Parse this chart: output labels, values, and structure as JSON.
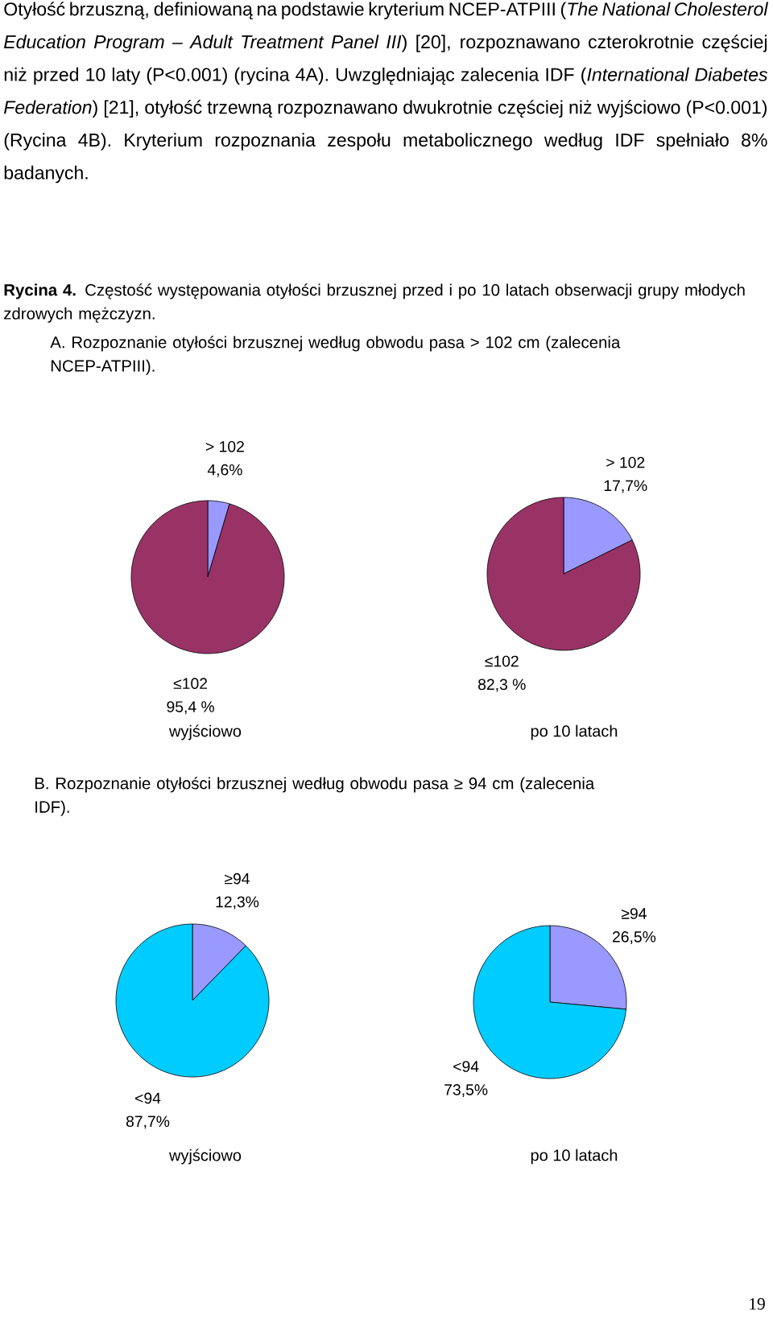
{
  "chart_data": [
    {
      "type": "pie",
      "title": "wyjściowo",
      "categories": [
        "> 102",
        "≤102"
      ],
      "values": [
        4.6,
        95.4
      ],
      "colors": [
        "#9999ff",
        "#993366"
      ],
      "value_labels": [
        "4,6%",
        "95,4 %"
      ],
      "annotations": [
        "Otyłość brzuszną, definiowaną na podstawie kryterium NCEP-ATPIII (*The National Cholesterol Education Program – Adult Treatment Panel III*) [20], rozpoznawano czterokrotnie częściej niż przed 10 laty (P<0.001) (rycina 4A). Uwzględniając zalecenia IDF (*International Diabetes Federation*) [21], otyłość trzewną rozpoznawano dwukrotnie częściej niż wyjściowo (P<0.001) (Rycina 4B). Kryterium rozpoznania zespołu metabolicznego według IDF spełniało 8% badanych.",
        "**Rycina 4.** Częstość występowania otyłości brzusznej przed i po 10 latach obserwacji grupy młodych zdrowych mężczyzn.",
        "A. Rozpoznanie otyłości brzusznej według obwodu pasa > 102 cm (zalecenia NCEP-ATPIII)."
      ]
    },
    {
      "type": "pie",
      "title": "po 10 latach",
      "categories": [
        "> 102",
        "≤102"
      ],
      "values": [
        17.7,
        82.3
      ],
      "colors": [
        "#9999ff",
        "#993366"
      ],
      "value_labels": [
        "17,7%",
        "82,3 %"
      ]
    },
    {
      "type": "pie",
      "title": "wyjściowo",
      "categories": [
        "≥94",
        "<94"
      ],
      "values": [
        12.3,
        87.7
      ],
      "colors": [
        "#9999ff",
        "#00ccff"
      ],
      "value_labels": [
        "12,3%",
        "87,7%"
      ],
      "annotations": [
        "B. Rozpoznanie otyłości brzusznej według obwodu pasa ≥ 94 cm (zalecenia IDF)."
      ]
    },
    {
      "type": "pie",
      "title": "po 10 latach",
      "categories": [
        "≥94",
        "<94"
      ],
      "values": [
        26.5,
        73.5
      ],
      "colors": [
        "#9999ff",
        "#00ccff"
      ],
      "value_labels": [
        "26,5%",
        "73,5%"
      ],
      "annotations": [
        "19"
      ]
    }
  ]
}
